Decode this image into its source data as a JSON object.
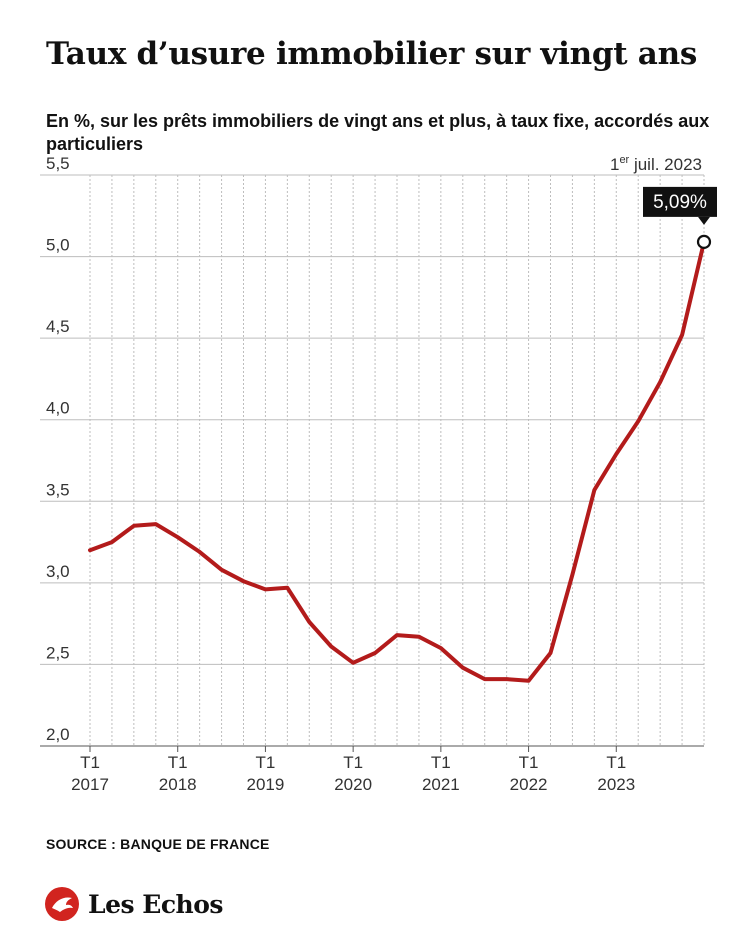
{
  "header": {
    "title": "Taux d’usure immobilier sur vingt ans",
    "subtitle": "En %, sur les prêts immobiliers de vingt ans et plus, à taux fixe, accordés aux particuliers"
  },
  "footer": {
    "source": "SOURCE : BANQUE DE FRANCE",
    "brand": "Les Echos"
  },
  "colors": {
    "line": "#b31b1b",
    "grid": "#bdbdbd",
    "axis": "#555555",
    "badge": "#111111"
  },
  "chart_data": {
    "type": "line",
    "title": "Taux d’usure immobilier sur vingt ans",
    "subtitle": "En %, sur les prêts immobiliers de vingt ans et plus, à taux fixe, accordés aux particuliers",
    "xlabel": "",
    "ylabel": "",
    "ylim": [
      2.0,
      5.5
    ],
    "yticks": [
      {
        "value": 2.0,
        "label": "2,0"
      },
      {
        "value": 2.5,
        "label": "2,5"
      },
      {
        "value": 3.0,
        "label": "3,0"
      },
      {
        "value": 3.5,
        "label": "3,5"
      },
      {
        "value": 4.0,
        "label": "4,0"
      },
      {
        "value": 4.5,
        "label": "4,5"
      },
      {
        "value": 5.0,
        "label": "5,0"
      },
      {
        "value": 5.5,
        "label": "5,5"
      }
    ],
    "xticks": [
      {
        "index": 0,
        "q": "T1",
        "year": "2017"
      },
      {
        "index": 4,
        "q": "T1",
        "year": "2018"
      },
      {
        "index": 8,
        "q": "T1",
        "year": "2019"
      },
      {
        "index": 12,
        "q": "T1",
        "year": "2020"
      },
      {
        "index": 16,
        "q": "T1",
        "year": "2021"
      },
      {
        "index": 20,
        "q": "T1",
        "year": "2022"
      },
      {
        "index": 24,
        "q": "T1",
        "year": "2023"
      }
    ],
    "grid": true,
    "series": [
      {
        "values": [
          3.2,
          3.25,
          3.35,
          3.36,
          3.28,
          3.19,
          3.08,
          3.01,
          2.96,
          2.97,
          2.76,
          2.61,
          2.51,
          2.57,
          2.68,
          2.67,
          2.6,
          2.48,
          2.41,
          2.41,
          2.4,
          2.57,
          3.05,
          3.57,
          3.79,
          3.99,
          4.23,
          4.52,
          5.09
        ]
      }
    ],
    "annotation": {
      "date_sup": "er",
      "date_prefix": "1",
      "date_rest": " juil. 2023",
      "value_label": "5,09%",
      "index": 28
    }
  }
}
